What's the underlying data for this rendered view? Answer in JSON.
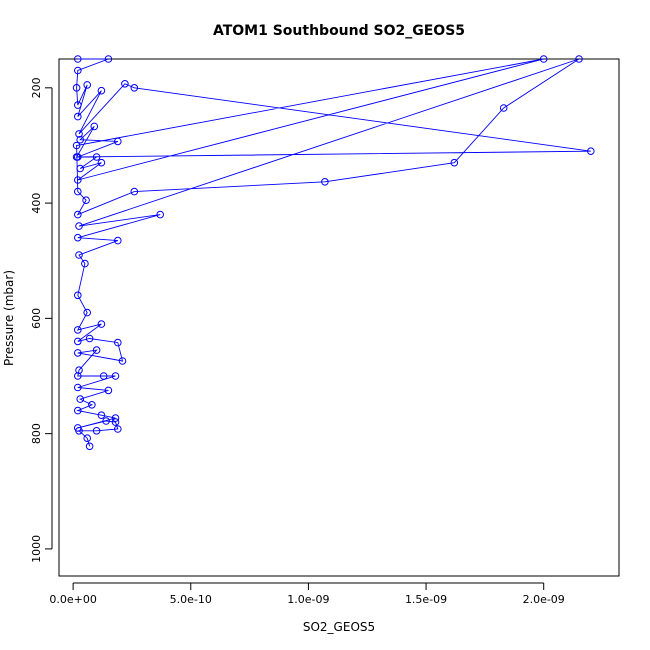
{
  "chart_data": {
    "type": "line",
    "title": "ATOM1 Southbound SO2_GEOS5",
    "xlabel": "SO2_GEOS5",
    "ylabel": "Pressure (mbar)",
    "xlim": [
      -6e-11,
      2.32e-09
    ],
    "ylim": [
      1047,
      150
    ],
    "y_inverted": true,
    "grid": false,
    "legend": "none",
    "x_ticks": [
      {
        "value": 0,
        "label": "0.0e+00"
      },
      {
        "value": 5e-10,
        "label": "5.0e-10"
      },
      {
        "value": 1e-09,
        "label": "1.0e-09"
      },
      {
        "value": 1.5e-09,
        "label": "1.5e-09"
      },
      {
        "value": 2e-09,
        "label": "2.0e-09"
      }
    ],
    "y_ticks": [
      {
        "value": 200,
        "label": "200"
      },
      {
        "value": 400,
        "label": "400"
      },
      {
        "value": 600,
        "label": "600"
      },
      {
        "value": 800,
        "label": "800"
      },
      {
        "value": 1000,
        "label": "1000"
      }
    ],
    "series": [
      {
        "color": "#0000ff",
        "marker": "open-circle",
        "points": [
          [
            2e-11,
            150
          ],
          [
            1.5e-10,
            150
          ],
          [
            2e-11,
            170
          ],
          [
            1.5e-11,
            200
          ],
          [
            2e-11,
            230
          ],
          [
            6e-11,
            195
          ],
          [
            2e-11,
            250
          ],
          [
            1.2e-10,
            205
          ],
          [
            2.5e-11,
            280
          ],
          [
            2.2e-10,
            193
          ],
          [
            2.6e-10,
            200
          ],
          [
            2.2e-09,
            310
          ],
          [
            1.5e-11,
            320
          ],
          [
            9e-11,
            267
          ],
          [
            3e-11,
            290
          ],
          [
            1.9e-10,
            293
          ],
          [
            2e-11,
            320
          ],
          [
            1e-10,
            320
          ],
          [
            3e-11,
            340
          ],
          [
            1.2e-10,
            330
          ],
          [
            2e-11,
            360
          ],
          [
            2e-09,
            150
          ],
          [
            1.5e-11,
            300
          ],
          [
            2e-11,
            380
          ],
          [
            5.5e-11,
            395
          ],
          [
            2e-11,
            420
          ],
          [
            2.6e-10,
            380
          ],
          [
            1.07e-09,
            363
          ],
          [
            1.62e-09,
            330
          ],
          [
            1.83e-09,
            235
          ],
          [
            2.15e-09,
            150
          ],
          [
            2.5e-11,
            440
          ],
          [
            3.7e-10,
            420
          ],
          [
            2e-11,
            460
          ],
          [
            1.9e-10,
            465
          ],
          [
            2.5e-11,
            490
          ],
          [
            5e-11,
            505
          ],
          [
            2e-11,
            560
          ],
          [
            6e-11,
            590
          ],
          [
            2e-11,
            620
          ],
          [
            1.2e-10,
            610
          ],
          [
            2e-11,
            640
          ],
          [
            7e-11,
            635
          ],
          [
            1.9e-10,
            642
          ],
          [
            2.1e-10,
            674
          ],
          [
            2e-11,
            660
          ],
          [
            1e-10,
            655
          ],
          [
            2.5e-11,
            690
          ],
          [
            2e-11,
            700
          ],
          [
            1.3e-10,
            700
          ],
          [
            1.8e-10,
            700
          ],
          [
            2e-11,
            720
          ],
          [
            1.5e-10,
            725
          ],
          [
            3e-11,
            740
          ],
          [
            8e-11,
            750
          ],
          [
            2e-11,
            760
          ],
          [
            1.2e-10,
            768
          ],
          [
            1.8e-10,
            773
          ],
          [
            2e-11,
            790
          ],
          [
            1.4e-10,
            778
          ],
          [
            1.8e-10,
            780
          ],
          [
            1.9e-10,
            792
          ],
          [
            1e-10,
            795
          ],
          [
            2.5e-11,
            795
          ],
          [
            6e-11,
            808
          ],
          [
            7e-11,
            822
          ]
        ]
      }
    ]
  }
}
